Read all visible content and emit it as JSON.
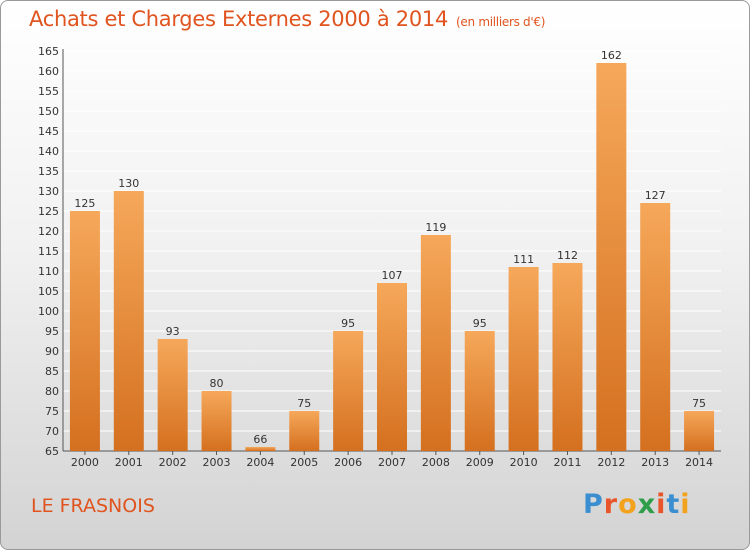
{
  "title": "Achats et Charges Externes 2000 à 2014",
  "unit_note": "(en milliers d'€)",
  "town": "LE FRASNOIS",
  "logo": {
    "letters": [
      "P",
      "r",
      "o",
      "x",
      "i",
      "t",
      "i"
    ],
    "colors": [
      "#3b8fd0",
      "#e8552a",
      "#f2a21d",
      "#2e9e4a",
      "#e8552a",
      "#3b8fd0",
      "#f2a21d"
    ]
  },
  "colors": {
    "bar_top": "#f6a85a",
    "bar_bottom": "#d4701f",
    "title": "#e0541f",
    "grid": "#ffffff"
  },
  "chart_data": {
    "type": "bar",
    "title": "Achats et Charges Externes 2000 à 2014",
    "categories": [
      "2000",
      "2001",
      "2002",
      "2003",
      "2004",
      "2005",
      "2006",
      "2007",
      "2008",
      "2009",
      "2010",
      "2011",
      "2012",
      "2013",
      "2014"
    ],
    "values": [
      125,
      130,
      93,
      80,
      66,
      75,
      95,
      107,
      119,
      95,
      111,
      112,
      162,
      127,
      75
    ],
    "ylim": [
      65,
      165
    ],
    "yticks": [
      65,
      70,
      75,
      80,
      85,
      90,
      95,
      100,
      105,
      110,
      115,
      120,
      125,
      130,
      135,
      140,
      145,
      150,
      155,
      160,
      165
    ],
    "grid": true,
    "legend": "none"
  }
}
